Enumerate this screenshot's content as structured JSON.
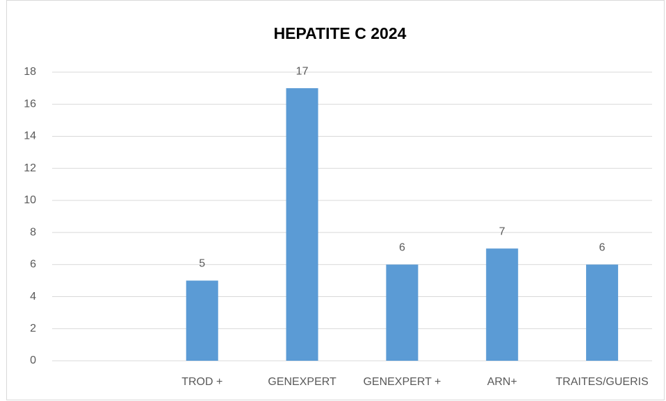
{
  "chart_data": {
    "type": "bar",
    "title": "HEPATITE C 2024",
    "categories": [
      null,
      "TROD +",
      "GENEXPERT",
      "GENEXPERT +",
      "ARN+",
      "TRAITES/GUERIS"
    ],
    "values": [
      null,
      5,
      17,
      6,
      7,
      6
    ],
    "color": "#5b9bd5",
    "ylim": [
      0,
      18
    ],
    "yticks": [
      0,
      2,
      4,
      6,
      8,
      10,
      12,
      14,
      16,
      18
    ],
    "grid": true
  }
}
